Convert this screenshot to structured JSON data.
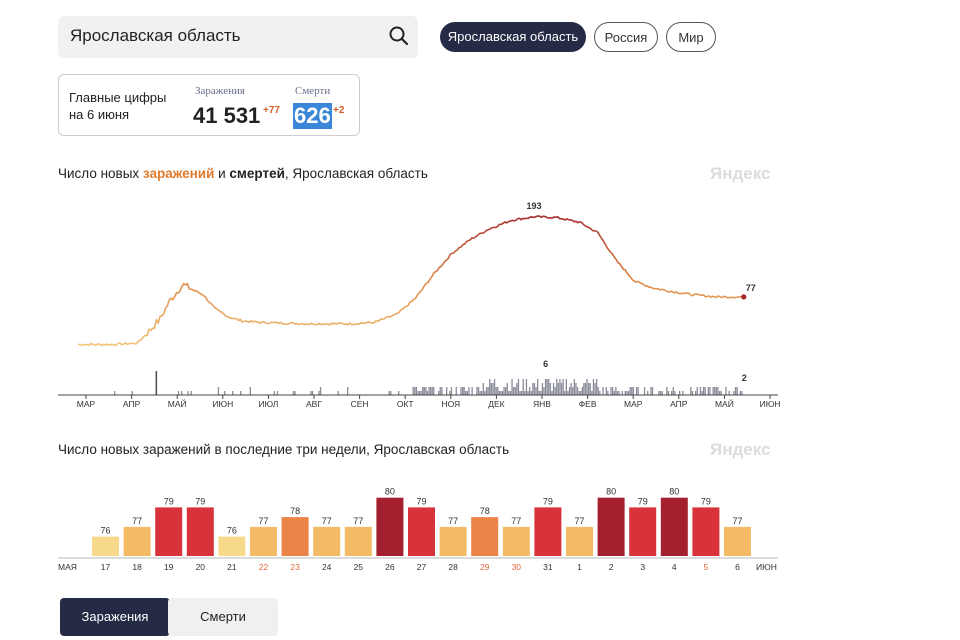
{
  "search": {
    "value": "Ярославская область"
  },
  "region_tabs": [
    {
      "label": "Ярославская область",
      "active": true
    },
    {
      "label": "Россия",
      "active": false
    },
    {
      "label": "Мир",
      "active": false
    }
  ],
  "stats": {
    "label_line1": "Главные цифры",
    "label_line2": "на 6 июня",
    "infections_caption": "Заражения",
    "infections_value": "41 531",
    "infections_delta": "+77",
    "deaths_caption": "Смерти",
    "deaths_value": "626",
    "deaths_delta": "+2"
  },
  "chart1_title": {
    "part1": "Число новых ",
    "highlight": "заражений",
    "part2": " и ",
    "bold": "смертей",
    "part3": ", Ярославская область"
  },
  "watermark": "Яндекс",
  "chart2_title": "Число новых заражений в последние три недели, Ярославская область",
  "chart_data": [
    {
      "type": "line",
      "x": [
        "мар",
        "апр",
        "май",
        "июн",
        "июл",
        "авг",
        "сен",
        "окт",
        "ноя",
        "дек",
        "янв",
        "фев",
        "мар",
        "апр",
        "май",
        "июн"
      ],
      "infections_points": [
        [
          0,
          8
        ],
        [
          0.8,
          8
        ],
        [
          1.3,
          10
        ],
        [
          1.6,
          30
        ],
        [
          1.8,
          45
        ],
        [
          2.0,
          70
        ],
        [
          2.3,
          95
        ],
        [
          2.5,
          88
        ],
        [
          2.75,
          80
        ],
        [
          3.0,
          60
        ],
        [
          3.3,
          48
        ],
        [
          3.6,
          42
        ],
        [
          4.0,
          40
        ],
        [
          4.5,
          39
        ],
        [
          5.0,
          38
        ],
        [
          5.5,
          38
        ],
        [
          6.0,
          38
        ],
        [
          6.5,
          40
        ],
        [
          7.0,
          52
        ],
        [
          7.4,
          75
        ],
        [
          7.8,
          110
        ],
        [
          8.2,
          140
        ],
        [
          8.6,
          160
        ],
        [
          9.0,
          175
        ],
        [
          9.5,
          188
        ],
        [
          10.0,
          193
        ],
        [
          10.5,
          192
        ],
        [
          11.0,
          185
        ],
        [
          11.4,
          170
        ],
        [
          11.8,
          130
        ],
        [
          12.2,
          100
        ],
        [
          12.6,
          90
        ],
        [
          13.0,
          85
        ],
        [
          13.5,
          80
        ],
        [
          14.0,
          77
        ],
        [
          14.6,
          77
        ]
      ],
      "infections_peak_label": "193",
      "infections_last_label": "77",
      "deaths_bars_label_peak": "6",
      "deaths_bars_label_last": "2",
      "deaths_max": 6
    },
    {
      "type": "bar",
      "categories": [
        "17",
        "18",
        "19",
        "20",
        "21",
        "22",
        "23",
        "24",
        "25",
        "26",
        "27",
        "28",
        "29",
        "30",
        "31",
        "1",
        "2",
        "3",
        "4",
        "5",
        "6"
      ],
      "values": [
        76,
        77,
        79,
        79,
        76,
        77,
        78,
        77,
        77,
        80,
        79,
        77,
        78,
        77,
        79,
        77,
        80,
        79,
        80,
        79,
        77
      ],
      "category_colors": [
        "#333333",
        "#333333",
        "#333333",
        "#333333",
        "#333333",
        "#e06a3a",
        "#e06a3a",
        "#333333",
        "#333333",
        "#333333",
        "#333333",
        "#333333",
        "#e06a3a",
        "#e06a3a",
        "#333333",
        "#333333",
        "#333333",
        "#333333",
        "#333333",
        "#e06a3a",
        "#333333"
      ],
      "month_start_label": "мая",
      "month_end_label": "июн",
      "ylim": [
        74,
        81
      ]
    }
  ],
  "bottom_tabs": [
    {
      "label": "Заражения",
      "active": true
    },
    {
      "label": "Смерти",
      "active": false
    }
  ]
}
